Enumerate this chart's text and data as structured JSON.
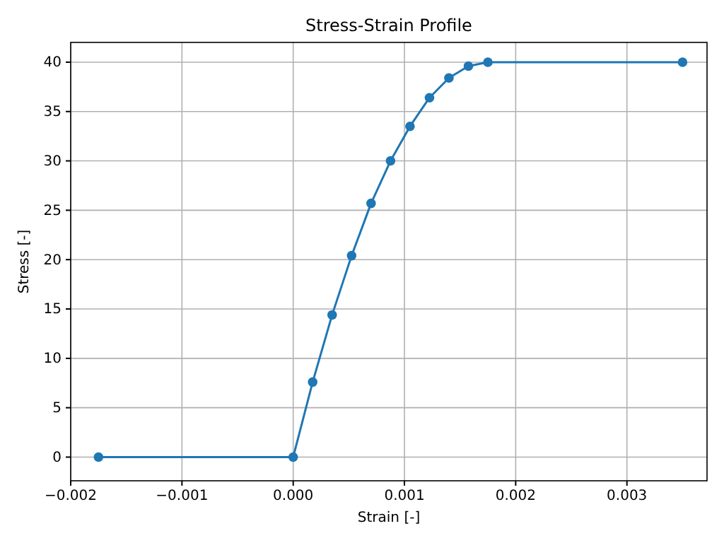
{
  "chart_data": {
    "type": "line",
    "title": "Stress-Strain Profile",
    "xlabel": "Strain [-]",
    "ylabel": "Stress [-]",
    "x": [
      -0.00175,
      0,
      0.000175,
      0.00035,
      0.000525,
      0.0007,
      0.000875,
      0.00105,
      0.001225,
      0.0014,
      0.001575,
      0.00175,
      0.0035
    ],
    "series": [
      {
        "color": "#1f77b4",
        "values": [
          0,
          0,
          7.6,
          14.4,
          20.4,
          25.7,
          30,
          33.5,
          36.4,
          38.4,
          39.6,
          40,
          40
        ]
      }
    ],
    "xlim": [
      -0.002,
      0.00372
    ],
    "ylim": [
      -2.4,
      42
    ],
    "xticks": [
      {
        "value": -0.002,
        "label": "−0.002"
      },
      {
        "value": -0.001,
        "label": "−0.001"
      },
      {
        "value": 0,
        "label": "0.000"
      },
      {
        "value": 0.001,
        "label": "0.001"
      },
      {
        "value": 0.002,
        "label": "0.002"
      },
      {
        "value": 0.003,
        "label": "0.003"
      }
    ],
    "yticks": [
      0,
      5,
      10,
      15,
      20,
      25,
      30,
      35,
      40
    ],
    "grid": true,
    "marker": "circle",
    "line_style": "solid"
  }
}
